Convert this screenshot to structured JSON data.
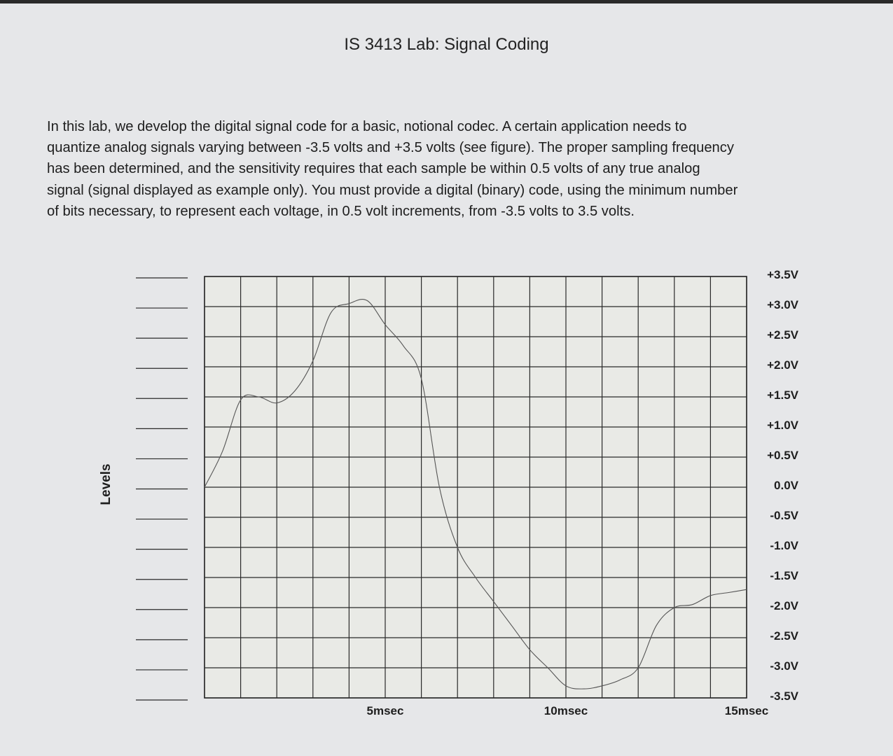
{
  "document": {
    "title": "IS 3413 Lab: Signal Coding",
    "paragraph_lines": [
      "In this lab, we develop the digital signal code for a basic, notional codec.  A certain application needs to",
      "quantize analog signals varying between -3.5 volts and +3.5 volts (see figure).  The proper sampling frequency",
      "has been determined, and the sensitivity requires that each sample be within 0.5 volts of any true analog",
      "signal (signal displayed as example only).  You must provide a digital (binary) code, using the minimum number",
      "of bits necessary, to represent each voltage, in 0.5 volt increments, from -3.5 volts to 3.5 volts."
    ]
  },
  "figure": {
    "levels_label": "Levels",
    "voltage_labels": [
      "+3.5V",
      "+3.0V",
      "+2.5V",
      "+2.0V",
      "+1.5V",
      "+1.0V",
      "+0.5V",
      "0.0V",
      "-0.5V",
      "-1.0V",
      "-1.5V",
      "-2.0V",
      "-2.5V",
      "-3.0V",
      "-3.5V"
    ],
    "time_labels": [
      {
        "text": "5msec",
        "t": 5
      },
      {
        "text": "10msec",
        "t": 10
      },
      {
        "text": "15msec",
        "t": 15
      }
    ],
    "level_blank_count": 15
  },
  "chart_data": {
    "type": "line",
    "x_unit": "msec",
    "xlim": [
      0,
      15
    ],
    "ylim": [
      -3.5,
      3.5
    ],
    "grid": true,
    "x": [
      0,
      0.5,
      1,
      1.5,
      2,
      2.5,
      3,
      3.5,
      4,
      4.5,
      5,
      5.5,
      6,
      6.5,
      7,
      7.5,
      8,
      8.5,
      9,
      9.5,
      10,
      10.5,
      11,
      11.5,
      12,
      12.5,
      13,
      13.5,
      14,
      14.5,
      15
    ],
    "y": [
      0.0,
      0.6,
      1.45,
      1.5,
      1.4,
      1.6,
      2.1,
      2.9,
      3.05,
      3.1,
      2.7,
      2.35,
      1.8,
      0.0,
      -1.0,
      -1.5,
      -1.9,
      -2.3,
      -2.7,
      -3.0,
      -3.3,
      -3.35,
      -3.3,
      -3.2,
      -3.0,
      -2.3,
      -2.0,
      -1.95,
      -1.8,
      -1.75,
      -1.7
    ]
  }
}
